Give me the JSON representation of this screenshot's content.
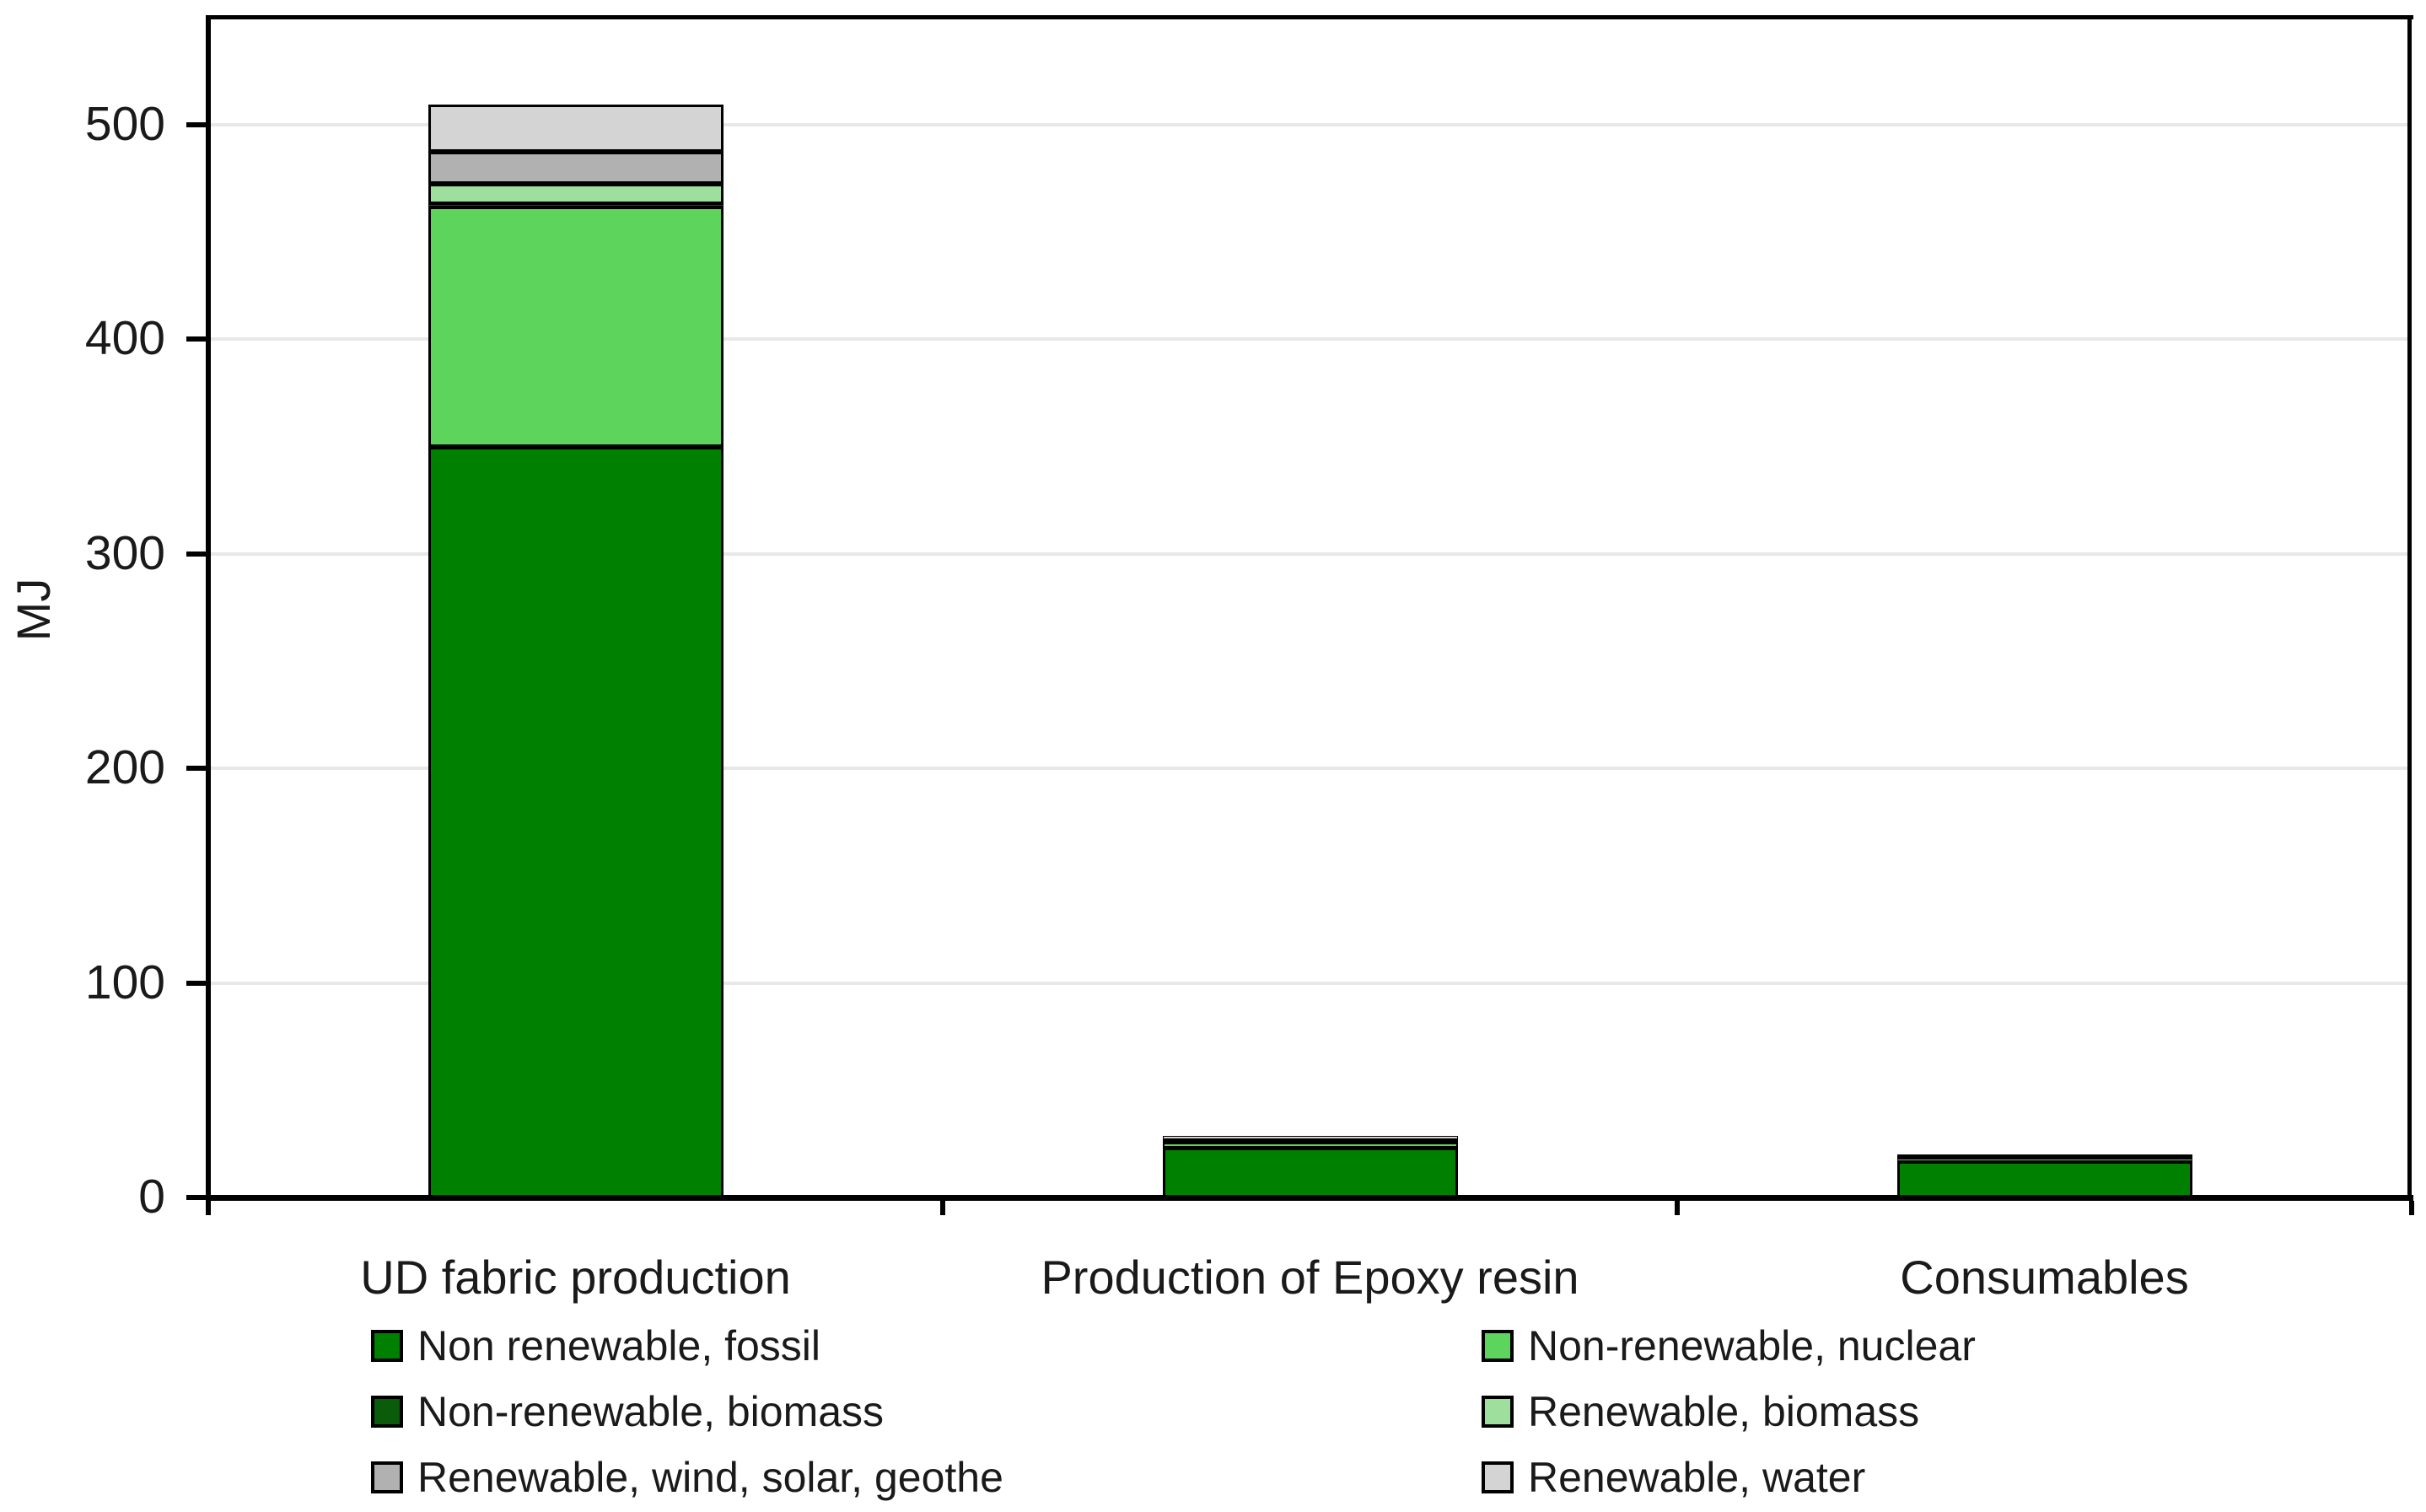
{
  "chart_data": {
    "type": "bar",
    "stacked": true,
    "title": "",
    "xlabel": "",
    "ylabel": "MJ",
    "ylim": [
      0,
      550
    ],
    "yticks": [
      0,
      100,
      200,
      300,
      400,
      500
    ],
    "ytick_labels": [
      "0",
      "100",
      "200",
      "300",
      "400",
      "500"
    ],
    "grid": "horizontal",
    "legend_position": "bottom-two-columns",
    "categories": [
      "UD fabric production",
      "Production of Epoxy resin",
      "Consumables"
    ],
    "series": [
      {
        "name": "Non renewable, fossil",
        "color": "#008000",
        "values": [
          350,
          23,
          17
        ]
      },
      {
        "name": "Non-renewable, nuclear",
        "color": "#5dd55d",
        "values": [
          112,
          2.5,
          1.2
        ]
      },
      {
        "name": "Non-renewable, biomass",
        "color": "#0a5c0a",
        "values": [
          1,
          0.3,
          0.2
        ]
      },
      {
        "name": "Renewable, biomass",
        "color": "#9edf9e",
        "values": [
          9.5,
          0.8,
          0.5
        ]
      },
      {
        "name": "Renewable, wind, solar, geothe",
        "color": "#b1b1b1",
        "values": [
          15,
          0.6,
          0.4
        ]
      },
      {
        "name": "Renewable, water",
        "color": "#d4d4d4",
        "values": [
          22,
          1.5,
          0.7
        ]
      }
    ],
    "bar_totals": [
      509.5,
      28.7,
      20.0
    ],
    "colors": {
      "bar_border": "#000000",
      "gridline": "#e8e8e8",
      "axis": "#000000",
      "text": "#1a1a1a",
      "background": "#ffffff"
    }
  }
}
